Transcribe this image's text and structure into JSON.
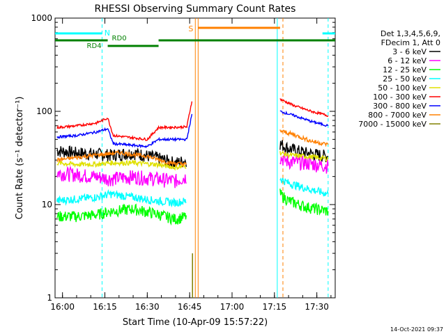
{
  "chart_data": {
    "type": "line",
    "title": "RHESSI Observing Summary Count Rates",
    "xlabel": "Start Time (10-Apr-09 15:57:22)",
    "ylabel": "Count Rate (s⁻¹ detector⁻¹)",
    "x_ticks": [
      "16:00",
      "16:15",
      "16:30",
      "16:45",
      "17:00",
      "17:15",
      "17:30"
    ],
    "y_ticks": [
      "1",
      "10",
      "100",
      "1000"
    ],
    "ylim": [
      1,
      1000
    ],
    "y_scale": "log",
    "xlim": [
      "15:57:22",
      "17:36:30"
    ],
    "legend_header": [
      "Det 1,3,4,5,6,9,",
      "FDecim 1, Att 0"
    ],
    "legend_position": "right",
    "timestamp": "14-Oct-2021 09:37",
    "series": [
      {
        "name": "3 - 6 keV",
        "color": "#000000",
        "t": [
          "15:58",
          "16:05",
          "16:12",
          "16:17",
          "16:25",
          "16:33",
          "16:40",
          "16:44",
          "17:17",
          "17:20",
          "17:26",
          "17:34"
        ],
        "values": [
          38,
          36,
          35,
          34,
          36,
          32,
          28,
          30,
          45,
          40,
          36,
          33
        ]
      },
      {
        "name": "6 - 12 keV",
        "color": "#ff00ff",
        "t": [
          "15:58",
          "16:05",
          "16:12",
          "16:17",
          "16:25",
          "16:33",
          "16:40",
          "16:44",
          "17:17",
          "17:20",
          "17:26",
          "17:34"
        ],
        "values": [
          22,
          21,
          20,
          19,
          20,
          19,
          18,
          20,
          32,
          29,
          28,
          26
        ]
      },
      {
        "name": "12 - 25 keV",
        "color": "#00ff00",
        "t": [
          "15:58",
          "16:05",
          "16:12",
          "16:17",
          "16:25",
          "16:33",
          "16:40",
          "16:44",
          "17:17",
          "17:20",
          "17:26",
          "17:34"
        ],
        "values": [
          7.5,
          7.5,
          7.8,
          8.5,
          9,
          8,
          7,
          7.5,
          13,
          11,
          9.5,
          8.5
        ]
      },
      {
        "name": "25 - 50 keV",
        "color": "#00ffff",
        "t": [
          "15:58",
          "16:05",
          "16:12",
          "16:17",
          "16:25",
          "16:33",
          "16:40",
          "16:44",
          "17:17",
          "17:20",
          "17:26",
          "17:34"
        ],
        "values": [
          11,
          11.5,
          12,
          13,
          12,
          11,
          10.5,
          11,
          19,
          17,
          15,
          13
        ]
      },
      {
        "name": "50 - 100 keV",
        "color": "#e0e000",
        "t": [
          "15:58",
          "16:05",
          "16:12",
          "16:17",
          "16:25",
          "16:33",
          "16:40",
          "16:44",
          "17:17",
          "17:20",
          "17:26",
          "17:34"
        ],
        "values": [
          28,
          27,
          27,
          28,
          28,
          27,
          25,
          26,
          36,
          34,
          33,
          31
        ]
      },
      {
        "name": "100 - 300 keV",
        "color": "#ff0000",
        "t": [
          "15:58",
          "16:05",
          "16:12",
          "16:16",
          "16:18",
          "16:30",
          "16:34",
          "16:44",
          "16:46",
          "17:17",
          "17:22",
          "17:28",
          "17:34"
        ],
        "values": [
          67,
          70,
          75,
          85,
          55,
          50,
          67,
          68,
          140,
          135,
          115,
          100,
          90
        ]
      },
      {
        "name": "300 - 800 keV",
        "color": "#0000ff",
        "t": [
          "15:58",
          "16:05",
          "16:12",
          "16:16",
          "16:18",
          "16:30",
          "16:34",
          "16:44",
          "16:46",
          "17:17",
          "17:22",
          "17:28",
          "17:34"
        ],
        "values": [
          53,
          55,
          60,
          65,
          45,
          42,
          50,
          50,
          100,
          100,
          90,
          78,
          70
        ]
      },
      {
        "name": "800 - 7000 keV",
        "color": "#ff8000",
        "t": [
          "15:58",
          "16:05",
          "16:12",
          "16:20",
          "16:30",
          "16:38",
          "16:44",
          "17:17",
          "17:22",
          "17:28",
          "17:34"
        ],
        "values": [
          30,
          32,
          34,
          36,
          33,
          28,
          27,
          62,
          56,
          48,
          44
        ]
      },
      {
        "name": "7000 - 15000 keV",
        "color": "#808000",
        "t": [
          "16:46"
        ],
        "values": [
          3
        ]
      }
    ],
    "annotations": {
      "att_state": [
        {
          "label": "N",
          "color": "#00ffff",
          "t_start": "15:57:22",
          "t_end": "16:14"
        },
        {
          "label": "",
          "color": "#00ffff",
          "t_start": "17:32",
          "t_end": "17:36:30"
        }
      ],
      "saa": [
        {
          "label": "S",
          "color": "#ff8000",
          "t_start": "16:48",
          "t_end": "17:17"
        }
      ],
      "decim": [
        {
          "label": "RD4",
          "color": "#008000",
          "t_start": "16:16",
          "t_end": "16:34"
        },
        {
          "label": "RD0",
          "color": "#008000",
          "t_start": "15:57:22",
          "t_end": "17:36:30"
        }
      ],
      "vlines": [
        {
          "t": "16:14",
          "color": "#00ffff",
          "style": "dashed"
        },
        {
          "t": "16:47",
          "color": "#ff8000",
          "style": "solid"
        },
        {
          "t": "16:48",
          "color": "#ff8000",
          "style": "solid"
        },
        {
          "t": "17:16",
          "color": "#00ffff",
          "style": "solid"
        },
        {
          "t": "17:18",
          "color": "#ff8000",
          "style": "dashed"
        },
        {
          "t": "17:34",
          "color": "#00ffff",
          "style": "dashed"
        }
      ]
    }
  }
}
